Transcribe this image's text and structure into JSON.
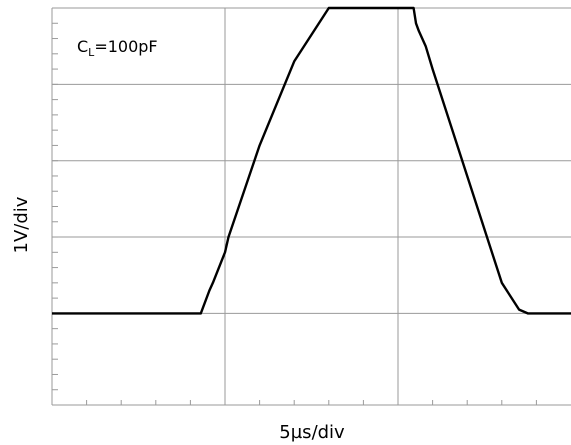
{
  "chart_data": {
    "type": "line",
    "annotation": {
      "main": "C",
      "sub": "L",
      "rest": "=100pF"
    },
    "xlabel": "5µs/div",
    "ylabel": "1V/div",
    "grid": true,
    "x_unit": "µs",
    "y_unit": "V",
    "xlim": [
      0,
      15
    ],
    "ylim": [
      -1.2,
      4
    ],
    "series": [
      {
        "values_x": [
          0.0,
          4.3,
          4.55,
          4.65,
          5.0,
          5.1,
          6.0,
          7.0,
          8.0,
          9.0,
          9.8,
          10.0,
          10.4,
          10.45,
          10.52,
          10.6,
          10.8,
          11.0,
          12.0,
          13.0,
          13.5,
          13.75,
          14.0,
          15.0
        ],
        "values_y": [
          0.0,
          0.0,
          0.3,
          0.4,
          0.8,
          1.0,
          2.2,
          3.3,
          4.0,
          4.0,
          4.0,
          4.0,
          4.0,
          4.0,
          3.8,
          3.7,
          3.5,
          3.2,
          1.8,
          0.4,
          0.05,
          0.0,
          0.0,
          0.0
        ]
      }
    ]
  }
}
